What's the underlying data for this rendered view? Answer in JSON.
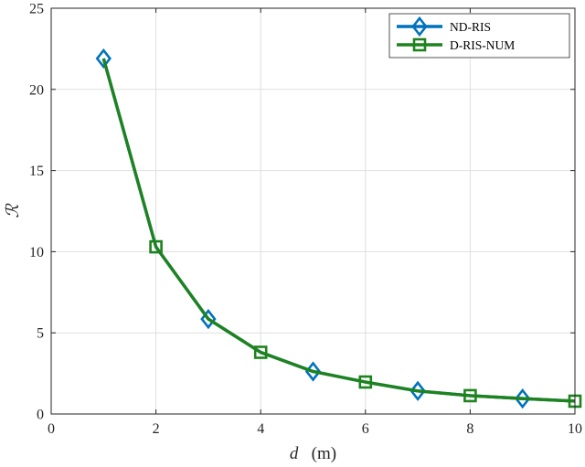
{
  "chart_data": {
    "type": "line",
    "xlabel": "d (m)",
    "xlabel_var": "d",
    "xlabel_unit": "(m)",
    "ylabel": "ℛ",
    "xlim": [
      0,
      10
    ],
    "ylim": [
      0,
      25
    ],
    "xticks": [
      0,
      2,
      4,
      6,
      8,
      10
    ],
    "yticks": [
      0,
      5,
      10,
      15,
      20,
      25
    ],
    "grid": true,
    "legend_position": "top-right",
    "x": [
      1,
      2,
      3,
      4,
      5,
      6,
      7,
      8,
      9,
      10
    ],
    "series": [
      {
        "name": "ND-RIS",
        "color": "#0072BD",
        "marker": "diamond",
        "values": [
          21.9,
          10.3,
          5.85,
          3.8,
          2.62,
          1.97,
          1.42,
          1.13,
          0.95,
          0.79
        ]
      },
      {
        "name": "D-RIS-NUM",
        "color": "#1E821E",
        "marker": "square",
        "values": [
          21.9,
          10.3,
          5.85,
          3.8,
          2.62,
          1.97,
          1.42,
          1.13,
          0.95,
          0.79
        ]
      }
    ]
  }
}
